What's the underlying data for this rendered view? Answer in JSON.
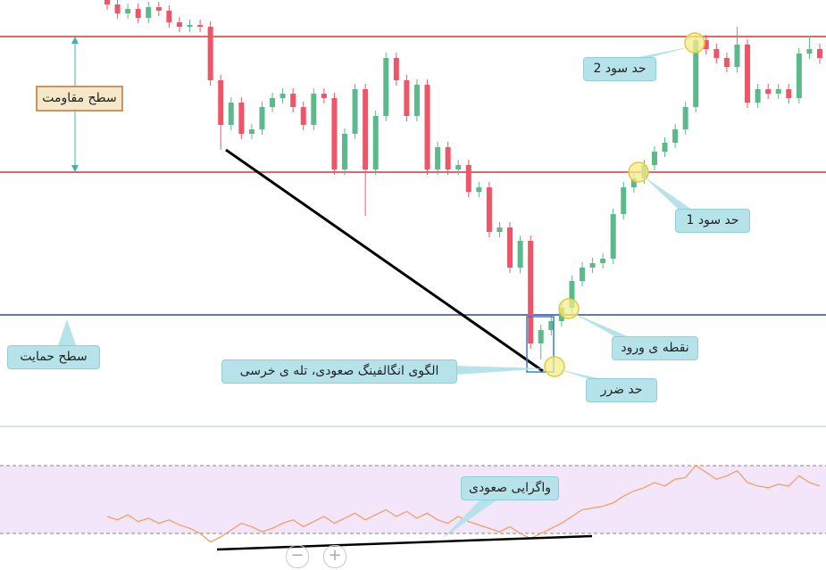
{
  "chart_data": {
    "type": "candlestick",
    "ylim": [
      0,
      478
    ],
    "open": [
      478,
      473,
      463,
      468,
      458,
      470,
      466,
      453,
      448,
      450,
      448,
      388,
      338,
      363,
      328,
      333,
      358,
      368,
      373,
      358,
      338,
      373,
      368,
      288,
      328,
      378,
      288,
      348,
      413,
      388,
      348,
      383,
      288,
      313,
      288,
      293,
      263,
      268,
      218,
      223,
      178,
      208,
      93,
      108,
      118,
      133,
      163,
      178,
      183,
      188,
      238,
      268,
      278,
      293,
      308,
      318,
      333,
      358,
      433,
      423,
      413,
      403,
      428,
      363,
      378,
      373,
      378,
      368,
      418,
      423
    ],
    "high": [
      484,
      479,
      474,
      474,
      476,
      476,
      472,
      459,
      456,
      456,
      454,
      394,
      369,
      369,
      339,
      364,
      374,
      379,
      379,
      364,
      379,
      379,
      374,
      334,
      384,
      384,
      354,
      419,
      419,
      394,
      389,
      389,
      319,
      319,
      299,
      299,
      274,
      274,
      229,
      229,
      214,
      214,
      114,
      124,
      139,
      169,
      184,
      189,
      194,
      244,
      274,
      284,
      299,
      314,
      324,
      339,
      364,
      439,
      439,
      429,
      419,
      448,
      434,
      384,
      384,
      384,
      384,
      424,
      438,
      429
    ],
    "low": [
      467,
      457,
      457,
      452,
      452,
      460,
      447,
      442,
      442,
      442,
      382,
      310,
      332,
      322,
      322,
      327,
      352,
      362,
      352,
      332,
      332,
      362,
      282,
      282,
      322,
      236,
      282,
      342,
      382,
      342,
      342,
      282,
      282,
      282,
      282,
      257,
      257,
      212,
      212,
      172,
      172,
      87,
      75,
      102,
      112,
      127,
      157,
      172,
      177,
      182,
      232,
      262,
      272,
      287,
      302,
      312,
      327,
      352,
      417,
      407,
      397,
      397,
      357,
      357,
      367,
      367,
      362,
      362,
      412,
      407
    ],
    "close": [
      473,
      463,
      468,
      458,
      470,
      466,
      453,
      448,
      450,
      448,
      388,
      338,
      363,
      328,
      333,
      358,
      368,
      373,
      358,
      338,
      373,
      368,
      288,
      328,
      378,
      288,
      348,
      413,
      388,
      348,
      383,
      288,
      313,
      288,
      293,
      263,
      268,
      218,
      223,
      178,
      208,
      93,
      108,
      118,
      133,
      163,
      178,
      183,
      188,
      238,
      268,
      278,
      293,
      308,
      318,
      333,
      358,
      433,
      423,
      413,
      403,
      428,
      363,
      378,
      373,
      378,
      368,
      418,
      423,
      413
    ],
    "up_color": "#5bb98c",
    "down_color": "#ef5566",
    "hlines": [
      {
        "value": 437,
        "color": "#d9343f"
      },
      {
        "value": 285,
        "color": "#d9343f"
      },
      {
        "value": 125,
        "color": "#2c4f8f"
      }
    ],
    "rsi": {
      "ylim": [
        0,
        100
      ],
      "levels": [
        70,
        30
      ],
      "color": "#f59a5a",
      "values": [
        40,
        38,
        41,
        37,
        39,
        36,
        38,
        35,
        33,
        30,
        25,
        28,
        32,
        36,
        34,
        31,
        33,
        36,
        38,
        34,
        37,
        40,
        36,
        39,
        42,
        38,
        41,
        44,
        40,
        43,
        39,
        42,
        38,
        36,
        40,
        37,
        35,
        33,
        31,
        34,
        30,
        27,
        30,
        33,
        36,
        40,
        44,
        45,
        46,
        48,
        52,
        55,
        57,
        60,
        58,
        62,
        63,
        70,
        66,
        62,
        64,
        67,
        60,
        58,
        57,
        59,
        58,
        64,
        60,
        58
      ]
    },
    "annotations": [
      "سطح مقاومت",
      "سطح حمایت",
      "حد سود 2",
      "حد سود 1",
      "نقطه ی ورود",
      "الگوی انگالفینگ صعودی، تله ی خرسی",
      "حد ضرر",
      "واگرایی صعودی"
    ],
    "zoom_out": "−",
    "zoom_in": "+"
  }
}
